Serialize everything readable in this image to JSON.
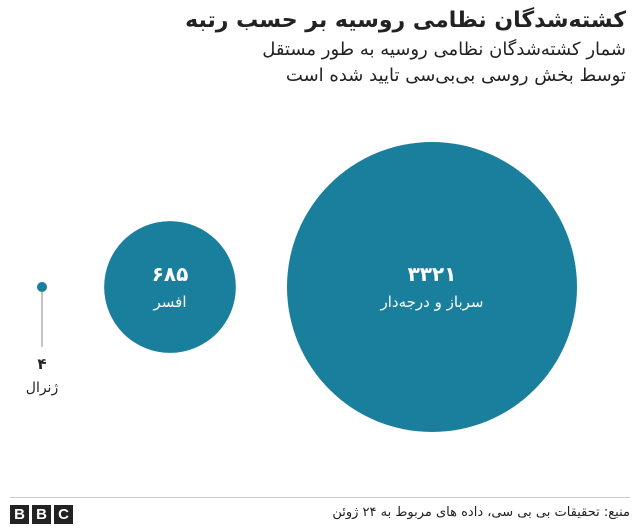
{
  "header": {
    "title": "کشته‌شدگان نظامی روسیه بر حسب رتبه",
    "subtitle_line1": "شمار کشته‌شدگان نظامی روسیه به طور مستقل",
    "subtitle_line2": "توسط بخش روسی بی‌بی‌سی تایید شده است"
  },
  "footer": {
    "logo_letters": [
      "B",
      "B",
      "C"
    ],
    "source": "منبع: تحقیقات بی بی سی، داده های مربوط به ۲۴ ژوئن"
  },
  "colors": {
    "bubble": "#1a7f9c",
    "text_dark": "#222222",
    "label_on_bubble": "#ffffff"
  },
  "chart_data": {
    "type": "bubble",
    "title": "کشته‌شدگان نظامی روسیه بر حسب رتبه",
    "series": [
      {
        "category": "ژنرال",
        "value": 4,
        "value_label": "۴"
      },
      {
        "category": "افسر",
        "value": 685,
        "value_label": "۶۸۵"
      },
      {
        "category": "سرباز و  درجه‌دار",
        "value": 3321,
        "value_label": "۳۳۲۱"
      }
    ]
  }
}
